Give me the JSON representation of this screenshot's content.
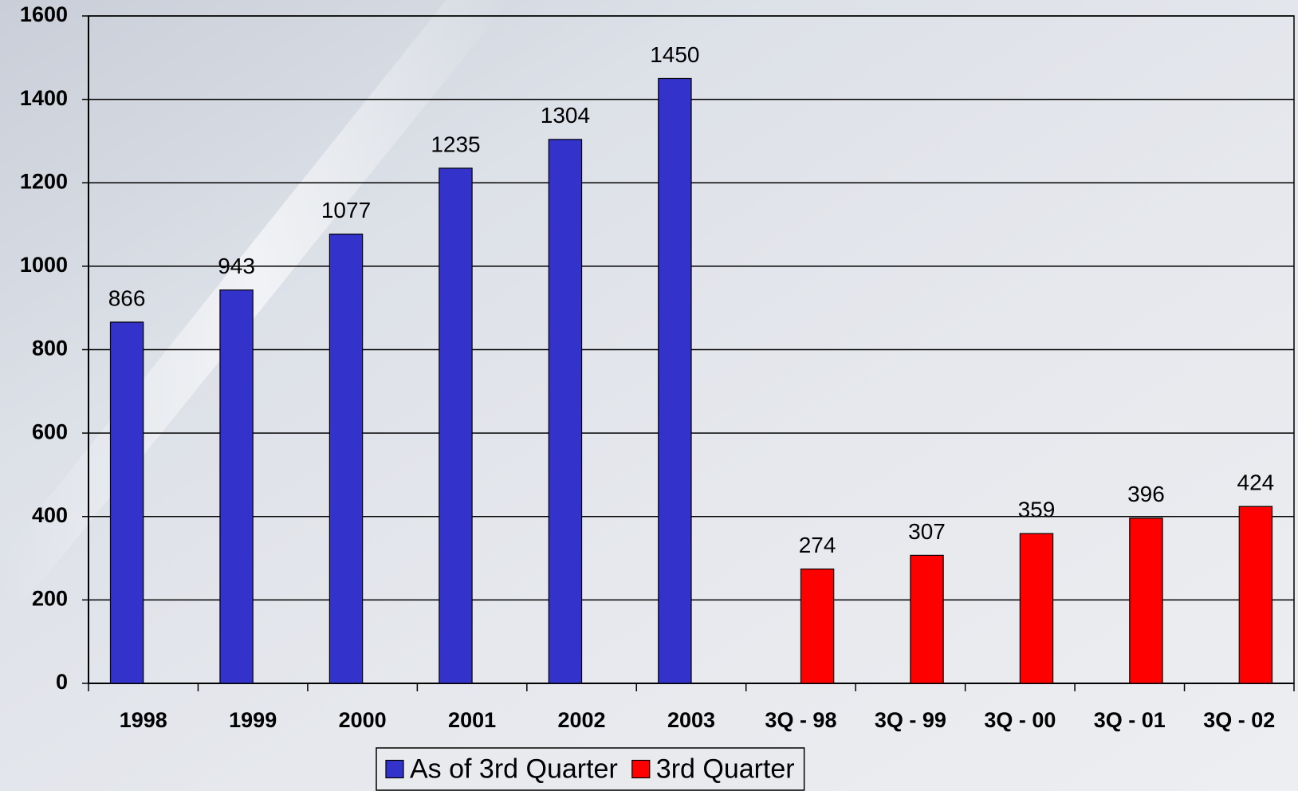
{
  "chart_data": {
    "type": "bar",
    "categories": [
      "1998",
      "1999",
      "2000",
      "2001",
      "2002",
      "2003",
      "3Q - 98",
      "3Q - 99",
      "3Q - 00",
      "3Q - 01",
      "3Q - 02"
    ],
    "series": [
      {
        "name": "As of 3rd Quarter",
        "color": "#3333cc",
        "values": [
          866,
          943,
          1077,
          1235,
          1304,
          1450,
          null,
          null,
          null,
          null,
          null
        ]
      },
      {
        "name": "3rd Quarter",
        "color": "#ff0000",
        "values": [
          null,
          null,
          null,
          null,
          null,
          null,
          274,
          307,
          359,
          396,
          424
        ]
      }
    ],
    "ylim": [
      0,
      1600
    ],
    "yticks": [
      0,
      200,
      400,
      600,
      800,
      1000,
      1200,
      1400,
      1600
    ],
    "grid": true,
    "legend": "bottom"
  }
}
